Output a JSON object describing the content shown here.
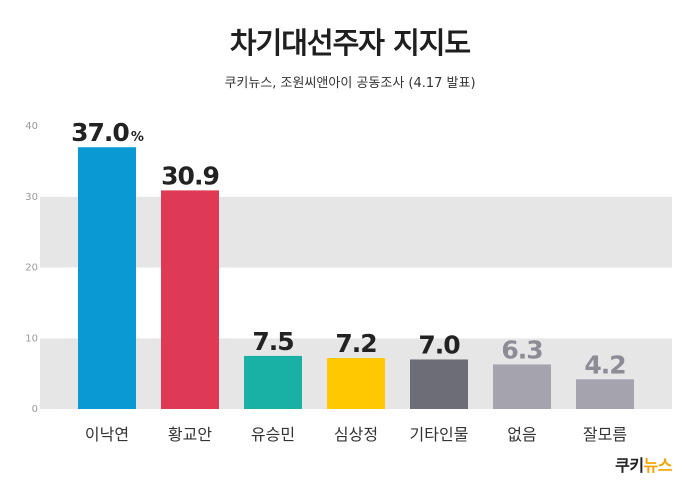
{
  "title": "차기대선주자 지지도",
  "subtitle": "쿠키뉴스, 조원씨앤아이 공동조사 (4.17 발표)",
  "logo": {
    "part1": "쿠키",
    "part2": "뉴스"
  },
  "chart_data": {
    "type": "bar",
    "categories": [
      "이낙연",
      "황교안",
      "유승민",
      "심상정",
      "기타인물",
      "없음",
      "잘모름"
    ],
    "values": [
      37.0,
      30.9,
      7.5,
      7.2,
      7.0,
      6.3,
      4.2
    ],
    "value_labels": [
      "37.0",
      "30.9",
      "7.5",
      "7.2",
      "7.0",
      "6.3",
      "4.2"
    ],
    "first_value_unit": "%",
    "bar_colors": [
      "#0a9ad3",
      "#df3a55",
      "#19b1a6",
      "#ffc800",
      "#6d6d78",
      "#a4a3ae",
      "#a4a3ae"
    ],
    "label_colors": [
      "#222222",
      "#222222",
      "#222222",
      "#222222",
      "#222222",
      "#8c8b96",
      "#8c8b96"
    ],
    "yticks": [
      0,
      10,
      20,
      30,
      40
    ],
    "ylim": [
      0,
      40
    ],
    "band_colors": [
      "#ffffff",
      "#e6e6e6"
    ]
  }
}
